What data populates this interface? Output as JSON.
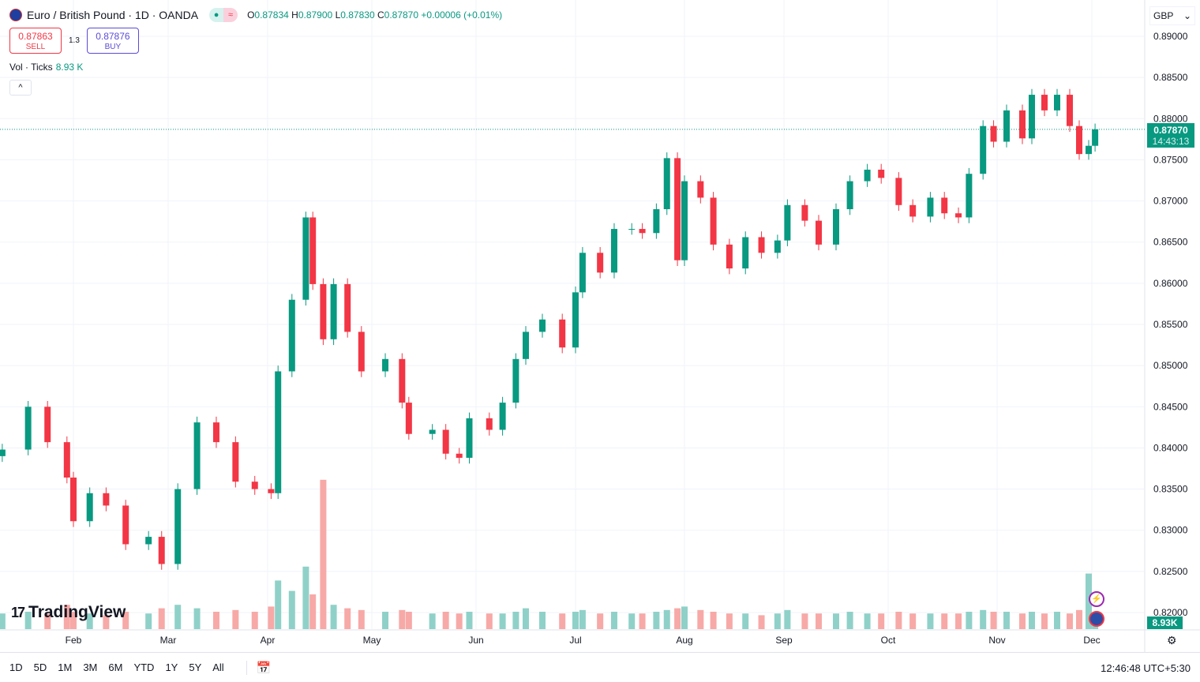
{
  "header": {
    "symbol": "Euro / British Pound · 1D · OANDA",
    "open_label": "O",
    "open": "0.87834",
    "high_label": "H",
    "high": "0.87900",
    "low_label": "L",
    "low": "0.87830",
    "close_label": "C",
    "close": "0.87870",
    "change": "+0.00006 (+0.01%)",
    "market_icon": "wave-icon"
  },
  "trade": {
    "sell_price": "0.87863",
    "sell_label": "SELL",
    "spread": "1.3",
    "buy_price": "0.87876",
    "buy_label": "BUY"
  },
  "volume": {
    "label": "Vol · Ticks",
    "value": "8.93 K",
    "badge": "8.93K"
  },
  "currency": "GBP",
  "last_price": {
    "value": "0.87870",
    "countdown": "14:43:13"
  },
  "logo": "TradingView",
  "bottom": {
    "periods": [
      "1D",
      "5D",
      "1M",
      "3M",
      "6M",
      "YTD",
      "1Y",
      "5Y",
      "All"
    ],
    "clock": "12:46:48 UTC+5:30"
  },
  "colors": {
    "up": "#089981",
    "down": "#f23645",
    "up_vol": "#8fd1c8",
    "down_vol": "#f7a9a7"
  },
  "chart_data": {
    "type": "candlestick",
    "title": "Euro / British Pound · 1D · OANDA",
    "ylim": [
      0.8185,
      0.8915
    ],
    "y_ticks": [
      "0.89000",
      "0.88500",
      "0.88000",
      "0.87500",
      "0.87000",
      "0.86500",
      "0.86000",
      "0.85500",
      "0.85000",
      "0.84500",
      "0.84000",
      "0.83500",
      "0.83000",
      "0.82500",
      "0.82000"
    ],
    "x_ticks": [
      "Feb",
      "Mar",
      "Apr",
      "May",
      "Jun",
      "Jul",
      "Aug",
      "Sep",
      "Oct",
      "Nov",
      "Dec"
    ],
    "grid": true,
    "points": [
      [
        "01-10",
        0.8398,
        9
      ],
      [
        "01-18",
        0.845,
        10
      ],
      [
        "01-24",
        0.8407,
        9
      ],
      [
        "01-30",
        0.8364,
        14
      ],
      [
        "02-01",
        0.8311,
        10
      ],
      [
        "02-06",
        0.8345,
        9
      ],
      [
        "02-11",
        0.833,
        8
      ],
      [
        "02-17",
        0.8283,
        10
      ],
      [
        "02-24",
        0.8292,
        9
      ],
      [
        "02-28",
        0.8259,
        12
      ],
      [
        "03-04",
        0.835,
        14
      ],
      [
        "03-10",
        0.8431,
        12
      ],
      [
        "03-16",
        0.8407,
        10
      ],
      [
        "03-22",
        0.8359,
        11
      ],
      [
        "03-28",
        0.835,
        10
      ],
      [
        "04-02",
        0.8345,
        13
      ],
      [
        "04-04",
        0.8493,
        28
      ],
      [
        "04-08",
        0.858,
        22
      ],
      [
        "04-12",
        0.868,
        36
      ],
      [
        "04-14",
        0.8599,
        20
      ],
      [
        "04-17",
        0.8532,
        86
      ],
      [
        "04-20",
        0.8599,
        14
      ],
      [
        "04-24",
        0.8541,
        12
      ],
      [
        "04-28",
        0.8493,
        11
      ],
      [
        "05-05",
        0.8508,
        10
      ],
      [
        "05-10",
        0.8455,
        11
      ],
      [
        "05-12",
        0.8417,
        10
      ],
      [
        "05-19",
        0.8422,
        9
      ],
      [
        "05-23",
        0.8393,
        10
      ],
      [
        "05-27",
        0.8388,
        9
      ],
      [
        "05-30",
        0.8436,
        10
      ],
      [
        "06-05",
        0.8422,
        9
      ],
      [
        "06-09",
        0.8455,
        9
      ],
      [
        "06-13",
        0.8508,
        10
      ],
      [
        "06-16",
        0.8541,
        12
      ],
      [
        "06-21",
        0.8556,
        10
      ],
      [
        "06-27",
        0.8522,
        9
      ],
      [
        "07-01",
        0.8589,
        10
      ],
      [
        "07-03",
        0.8637,
        11
      ],
      [
        "07-08",
        0.8613,
        9
      ],
      [
        "07-12",
        0.8666,
        10
      ],
      [
        "07-17",
        0.8666,
        9
      ],
      [
        "07-20",
        0.8661,
        9
      ],
      [
        "07-24",
        0.869,
        10
      ],
      [
        "07-27",
        0.8752,
        11
      ],
      [
        "07-30",
        0.8628,
        12
      ],
      [
        "08-01",
        0.8724,
        13
      ],
      [
        "08-06",
        0.8704,
        11
      ],
      [
        "08-10",
        0.8647,
        10
      ],
      [
        "08-15",
        0.8618,
        9
      ],
      [
        "08-20",
        0.8656,
        9
      ],
      [
        "08-25",
        0.8637,
        8
      ],
      [
        "08-30",
        0.8652,
        9
      ],
      [
        "09-02",
        0.8695,
        11
      ],
      [
        "09-07",
        0.8676,
        9
      ],
      [
        "09-11",
        0.8647,
        9
      ],
      [
        "09-16",
        0.869,
        9
      ],
      [
        "09-20",
        0.8724,
        10
      ],
      [
        "09-25",
        0.8738,
        9
      ],
      [
        "09-29",
        0.8728,
        9
      ],
      [
        "10-04",
        0.8695,
        10
      ],
      [
        "10-08",
        0.8681,
        9
      ],
      [
        "10-13",
        0.8704,
        9
      ],
      [
        "10-17",
        0.8685,
        9
      ],
      [
        "10-21",
        0.868,
        9
      ],
      [
        "10-24",
        0.8733,
        10
      ],
      [
        "10-28",
        0.8791,
        11
      ],
      [
        "10-31",
        0.8772,
        10
      ],
      [
        "11-04",
        0.881,
        10
      ],
      [
        "11-09",
        0.8776,
        9
      ],
      [
        "11-12",
        0.8829,
        10
      ],
      [
        "11-16",
        0.881,
        9
      ],
      [
        "11-20",
        0.8829,
        10
      ],
      [
        "11-24",
        0.8791,
        9
      ],
      [
        "11-27",
        0.8757,
        11
      ],
      [
        "11-30",
        0.8767,
        32
      ],
      [
        "12-02",
        0.8787,
        8.93
      ]
    ]
  }
}
